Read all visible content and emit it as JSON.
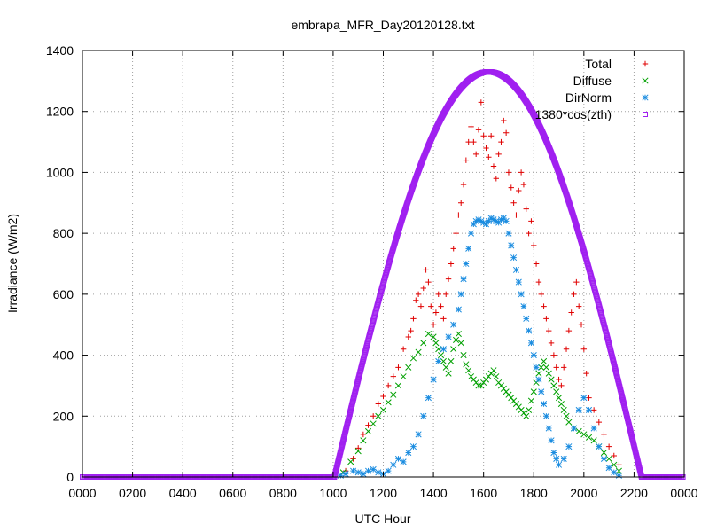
{
  "chart_data": {
    "type": "scatter",
    "title": "embrapa_MFR_Day20120128.txt",
    "xlabel": "UTC Hour",
    "ylabel": "Irradiance (W/m2)",
    "xlim": [
      0,
      24
    ],
    "ylim": [
      0,
      1400
    ],
    "x_ticks": [
      {
        "value": 0,
        "label": "0000"
      },
      {
        "value": 2,
        "label": "0200"
      },
      {
        "value": 4,
        "label": "0400"
      },
      {
        "value": 6,
        "label": "0600"
      },
      {
        "value": 8,
        "label": "0800"
      },
      {
        "value": 10,
        "label": "1000"
      },
      {
        "value": 12,
        "label": "1200"
      },
      {
        "value": 14,
        "label": "1400"
      },
      {
        "value": 16,
        "label": "1600"
      },
      {
        "value": 18,
        "label": "1800"
      },
      {
        "value": 20,
        "label": "2000"
      },
      {
        "value": 22,
        "label": "2200"
      },
      {
        "value": 24,
        "label": "0000"
      }
    ],
    "y_ticks": [
      0,
      200,
      400,
      600,
      800,
      1000,
      1200,
      1400
    ],
    "grid": true,
    "legend_position": "top-right",
    "series": [
      {
        "name": "Total",
        "marker": "plus",
        "color": "#e00000",
        "points": [
          [
            10.5,
            20
          ],
          [
            10.8,
            60
          ],
          [
            11.0,
            95
          ],
          [
            11.2,
            140
          ],
          [
            11.4,
            170
          ],
          [
            11.6,
            200
          ],
          [
            11.8,
            240
          ],
          [
            12.0,
            265
          ],
          [
            12.2,
            300
          ],
          [
            12.4,
            330
          ],
          [
            12.6,
            360
          ],
          [
            12.8,
            420
          ],
          [
            13.0,
            460
          ],
          [
            13.1,
            480
          ],
          [
            13.2,
            520
          ],
          [
            13.3,
            580
          ],
          [
            13.4,
            600
          ],
          [
            13.5,
            560
          ],
          [
            13.6,
            620
          ],
          [
            13.7,
            680
          ],
          [
            13.8,
            640
          ],
          [
            13.9,
            560
          ],
          [
            14.0,
            500
          ],
          [
            14.1,
            540
          ],
          [
            14.2,
            600
          ],
          [
            14.3,
            560
          ],
          [
            14.4,
            520
          ],
          [
            14.5,
            600
          ],
          [
            14.6,
            650
          ],
          [
            14.7,
            700
          ],
          [
            14.8,
            750
          ],
          [
            14.9,
            800
          ],
          [
            15.0,
            860
          ],
          [
            15.1,
            900
          ],
          [
            15.2,
            960
          ],
          [
            15.3,
            1040
          ],
          [
            15.4,
            1100
          ],
          [
            15.5,
            1150
          ],
          [
            15.6,
            1100
          ],
          [
            15.7,
            1060
          ],
          [
            15.8,
            1140
          ],
          [
            15.9,
            1230
          ],
          [
            16.0,
            1120
          ],
          [
            16.1,
            1080
          ],
          [
            16.2,
            1050
          ],
          [
            16.3,
            1120
          ],
          [
            16.4,
            1020
          ],
          [
            16.5,
            980
          ],
          [
            16.6,
            1060
          ],
          [
            16.7,
            1100
          ],
          [
            16.8,
            1170
          ],
          [
            16.9,
            1130
          ],
          [
            17.0,
            1000
          ],
          [
            17.1,
            950
          ],
          [
            17.2,
            900
          ],
          [
            17.3,
            860
          ],
          [
            17.4,
            940
          ],
          [
            17.5,
            1000
          ],
          [
            17.6,
            960
          ],
          [
            17.7,
            880
          ],
          [
            17.8,
            800
          ],
          [
            17.9,
            840
          ],
          [
            18.0,
            760
          ],
          [
            18.1,
            700
          ],
          [
            18.2,
            640
          ],
          [
            18.3,
            600
          ],
          [
            18.4,
            560
          ],
          [
            18.5,
            520
          ],
          [
            18.6,
            480
          ],
          [
            18.7,
            440
          ],
          [
            18.8,
            400
          ],
          [
            18.9,
            360
          ],
          [
            19.0,
            320
          ],
          [
            19.1,
            300
          ],
          [
            19.2,
            360
          ],
          [
            19.3,
            420
          ],
          [
            19.4,
            480
          ],
          [
            19.5,
            540
          ],
          [
            19.6,
            600
          ],
          [
            19.7,
            640
          ],
          [
            19.8,
            560
          ],
          [
            19.9,
            500
          ],
          [
            20.0,
            420
          ],
          [
            20.1,
            340
          ],
          [
            20.2,
            260
          ],
          [
            20.4,
            220
          ],
          [
            20.6,
            180
          ],
          [
            20.8,
            140
          ],
          [
            21.0,
            100
          ],
          [
            21.2,
            70
          ],
          [
            21.4,
            40
          ]
        ]
      },
      {
        "name": "Diffuse",
        "marker": "cross",
        "color": "#00a000",
        "points": [
          [
            10.4,
            15
          ],
          [
            10.7,
            50
          ],
          [
            11.0,
            85
          ],
          [
            11.2,
            120
          ],
          [
            11.4,
            150
          ],
          [
            11.6,
            175
          ],
          [
            11.8,
            200
          ],
          [
            12.0,
            220
          ],
          [
            12.2,
            245
          ],
          [
            12.4,
            270
          ],
          [
            12.6,
            300
          ],
          [
            12.8,
            330
          ],
          [
            13.0,
            360
          ],
          [
            13.2,
            390
          ],
          [
            13.4,
            410
          ],
          [
            13.6,
            440
          ],
          [
            13.8,
            470
          ],
          [
            14.0,
            460
          ],
          [
            14.1,
            440
          ],
          [
            14.2,
            420
          ],
          [
            14.3,
            400
          ],
          [
            14.4,
            380
          ],
          [
            14.5,
            360
          ],
          [
            14.6,
            340
          ],
          [
            14.7,
            380
          ],
          [
            14.8,
            420
          ],
          [
            14.9,
            450
          ],
          [
            15.0,
            470
          ],
          [
            15.1,
            440
          ],
          [
            15.2,
            400
          ],
          [
            15.3,
            370
          ],
          [
            15.4,
            350
          ],
          [
            15.5,
            330
          ],
          [
            15.6,
            320
          ],
          [
            15.7,
            310
          ],
          [
            15.8,
            300
          ],
          [
            15.9,
            300
          ],
          [
            16.0,
            310
          ],
          [
            16.1,
            320
          ],
          [
            16.2,
            330
          ],
          [
            16.3,
            340
          ],
          [
            16.4,
            350
          ],
          [
            16.5,
            330
          ],
          [
            16.6,
            310
          ],
          [
            16.7,
            300
          ],
          [
            16.8,
            290
          ],
          [
            16.9,
            280
          ],
          [
            17.0,
            270
          ],
          [
            17.1,
            260
          ],
          [
            17.2,
            250
          ],
          [
            17.3,
            240
          ],
          [
            17.4,
            230
          ],
          [
            17.5,
            220
          ],
          [
            17.6,
            210
          ],
          [
            17.7,
            200
          ],
          [
            17.8,
            220
          ],
          [
            17.9,
            250
          ],
          [
            18.0,
            280
          ],
          [
            18.1,
            310
          ],
          [
            18.2,
            340
          ],
          [
            18.3,
            360
          ],
          [
            18.4,
            380
          ],
          [
            18.5,
            360
          ],
          [
            18.6,
            340
          ],
          [
            18.7,
            320
          ],
          [
            18.8,
            300
          ],
          [
            18.9,
            280
          ],
          [
            19.0,
            260
          ],
          [
            19.1,
            240
          ],
          [
            19.2,
            220
          ],
          [
            19.3,
            200
          ],
          [
            19.4,
            180
          ],
          [
            19.6,
            160
          ],
          [
            19.8,
            150
          ],
          [
            20.0,
            140
          ],
          [
            20.2,
            130
          ],
          [
            20.4,
            120
          ],
          [
            20.6,
            100
          ],
          [
            20.8,
            80
          ],
          [
            21.0,
            60
          ],
          [
            21.2,
            40
          ],
          [
            21.4,
            20
          ]
        ]
      },
      {
        "name": "DirNorm",
        "marker": "star",
        "color": "#1a8ce0",
        "points": [
          [
            10.3,
            5
          ],
          [
            10.5,
            10
          ],
          [
            10.8,
            20
          ],
          [
            11.0,
            15
          ],
          [
            11.2,
            10
          ],
          [
            11.4,
            20
          ],
          [
            11.6,
            25
          ],
          [
            11.8,
            15
          ],
          [
            12.0,
            10
          ],
          [
            12.2,
            20
          ],
          [
            12.4,
            40
          ],
          [
            12.6,
            60
          ],
          [
            12.8,
            50
          ],
          [
            13.0,
            80
          ],
          [
            13.2,
            100
          ],
          [
            13.4,
            140
          ],
          [
            13.6,
            200
          ],
          [
            13.8,
            260
          ],
          [
            14.0,
            320
          ],
          [
            14.2,
            380
          ],
          [
            14.4,
            420
          ],
          [
            14.6,
            460
          ],
          [
            14.8,
            500
          ],
          [
            15.0,
            550
          ],
          [
            15.1,
            600
          ],
          [
            15.2,
            650
          ],
          [
            15.3,
            700
          ],
          [
            15.4,
            750
          ],
          [
            15.5,
            800
          ],
          [
            15.6,
            830
          ],
          [
            15.7,
            840
          ],
          [
            15.8,
            845
          ],
          [
            15.9,
            840
          ],
          [
            16.0,
            835
          ],
          [
            16.1,
            830
          ],
          [
            16.2,
            840
          ],
          [
            16.3,
            850
          ],
          [
            16.4,
            845
          ],
          [
            16.5,
            840
          ],
          [
            16.6,
            835
          ],
          [
            16.7,
            845
          ],
          [
            16.8,
            850
          ],
          [
            16.9,
            840
          ],
          [
            17.0,
            800
          ],
          [
            17.1,
            760
          ],
          [
            17.2,
            720
          ],
          [
            17.3,
            680
          ],
          [
            17.4,
            640
          ],
          [
            17.5,
            600
          ],
          [
            17.6,
            560
          ],
          [
            17.7,
            520
          ],
          [
            17.8,
            480
          ],
          [
            17.9,
            440
          ],
          [
            18.0,
            400
          ],
          [
            18.1,
            360
          ],
          [
            18.2,
            320
          ],
          [
            18.3,
            280
          ],
          [
            18.4,
            240
          ],
          [
            18.5,
            200
          ],
          [
            18.6,
            160
          ],
          [
            18.7,
            120
          ],
          [
            18.8,
            80
          ],
          [
            18.9,
            60
          ],
          [
            19.0,
            40
          ],
          [
            19.2,
            60
          ],
          [
            19.4,
            100
          ],
          [
            19.6,
            160
          ],
          [
            19.8,
            220
          ],
          [
            20.0,
            260
          ],
          [
            20.2,
            220
          ],
          [
            20.4,
            160
          ],
          [
            20.6,
            100
          ],
          [
            20.8,
            60
          ],
          [
            21.0,
            30
          ],
          [
            21.2,
            15
          ],
          [
            21.4,
            5
          ]
        ]
      },
      {
        "name": "1380*cos(zth)",
        "marker": "square",
        "color": "#a020f0",
        "curve": {
          "x_start": 10.05,
          "x_end": 22.3,
          "peak_x": 16.2,
          "peak_y": 1330
        }
      }
    ]
  }
}
